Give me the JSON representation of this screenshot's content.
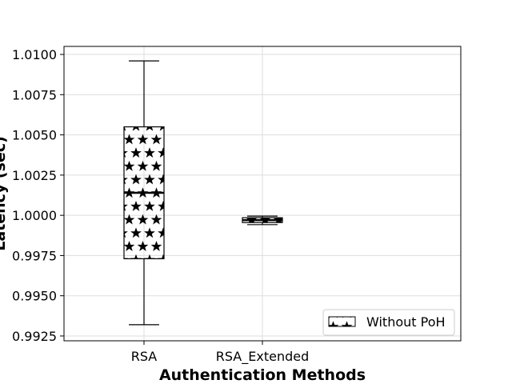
{
  "chart_data": {
    "type": "box",
    "xlabel": "Authentication Methods",
    "ylabel": "Latency (sec)",
    "categories": [
      "RSA",
      "RSA_Extended"
    ],
    "series": [
      {
        "name": "Without PoH",
        "boxes": [
          {
            "category": "RSA",
            "whisker_low": 0.9932,
            "q1": 0.9973,
            "median": 1.0014,
            "q3": 1.0055,
            "whisker_high": 1.0096
          },
          {
            "category": "RSA_Extended",
            "whisker_low": 0.99942,
            "q1": 0.99955,
            "median": 0.9997,
            "q3": 0.99985,
            "whisker_high": 0.99995
          }
        ]
      }
    ],
    "ylim": [
      0.9922,
      1.0105
    ],
    "yticks": [
      "0.9925",
      "0.9950",
      "0.9975",
      "1.0000",
      "1.0025",
      "1.0050",
      "1.0075",
      "1.0100"
    ],
    "grid": true,
    "legend_position": "lower-right",
    "hatch": "stars"
  }
}
